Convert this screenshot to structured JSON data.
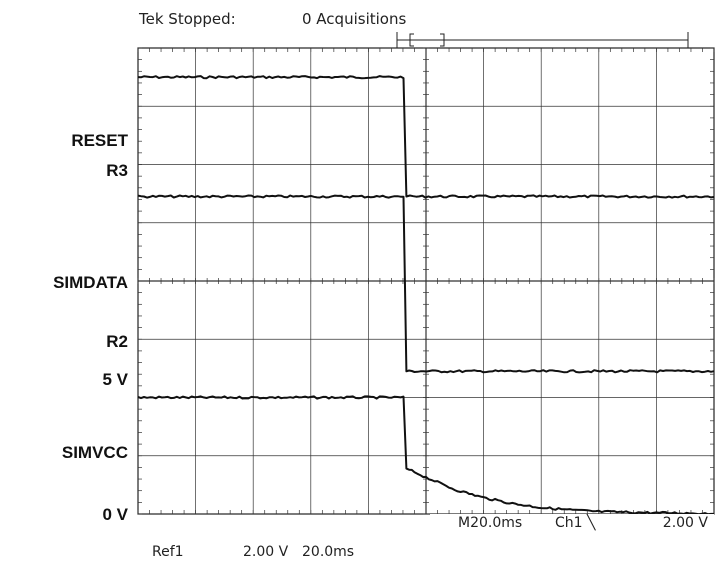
{
  "header": {
    "scope_status": "Tek Stopped:",
    "acquisitions": "0 Acquisitions"
  },
  "trace_labels": {
    "reset": "RESET",
    "r3": "R3",
    "simdata": "SIMDATA",
    "r2": "R2",
    "five_v": "5 V",
    "simvcc": "SIMVCC",
    "zero_v": "0 V"
  },
  "settings": {
    "timebase": "M20.0ms",
    "trigger": "Ch1 ╲",
    "trigger_level": "2.00 V",
    "ref_name": "Ref1",
    "ref_volts": "2.00 V",
    "ref_time": "20.0ms"
  },
  "chart_data": {
    "type": "line",
    "title": "",
    "xlabel": "",
    "ylabel": "",
    "x_unit_per_div": "20.0 ms",
    "y_unit_per_div": "2.00 V",
    "x_divisions": 10,
    "y_divisions": 8,
    "grid": true,
    "xlim": [
      0,
      10
    ],
    "ylim": [
      0,
      8
    ],
    "series": [
      {
        "name": "RESET",
        "color": "#111111",
        "points": [
          [
            0,
            7.5
          ],
          [
            4.61,
            7.5
          ],
          [
            4.66,
            5.45
          ],
          [
            4.78,
            5.45
          ],
          [
            10,
            5.45
          ]
        ]
      },
      {
        "name": "SIMDATA",
        "color": "#111111",
        "points": [
          [
            0,
            5.45
          ],
          [
            4.61,
            5.45
          ],
          [
            4.66,
            2.45
          ],
          [
            4.8,
            2.45
          ],
          [
            10,
            2.45
          ]
        ]
      },
      {
        "name": "SIMVCC",
        "color": "#111111",
        "points": [
          [
            0,
            2.0
          ],
          [
            4.61,
            2.0
          ],
          [
            4.66,
            0.78
          ],
          [
            4.8,
            0.72
          ],
          [
            5.0,
            0.63
          ],
          [
            5.5,
            0.42
          ],
          [
            6.0,
            0.28
          ],
          [
            6.5,
            0.18
          ],
          [
            7.0,
            0.11
          ],
          [
            7.5,
            0.07
          ],
          [
            8.0,
            0.04
          ],
          [
            9.0,
            0.02
          ],
          [
            10.0,
            0.01
          ]
        ]
      }
    ]
  }
}
